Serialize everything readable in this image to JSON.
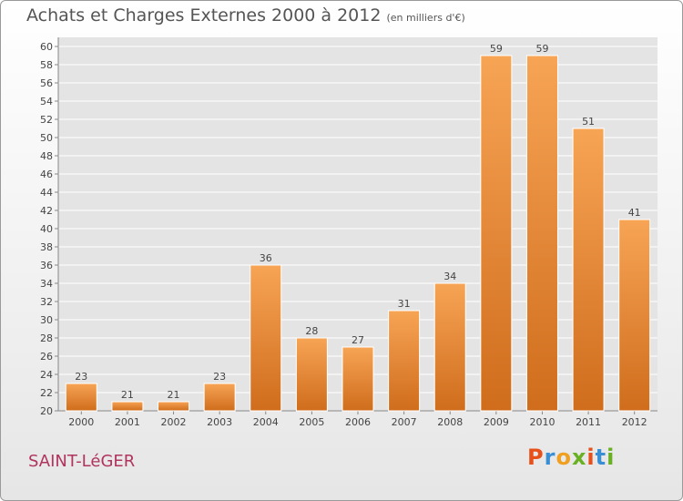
{
  "header": {
    "title": "Achats et Charges Externes 2000 à 2012",
    "subtitle": "(en milliers d'€)"
  },
  "footer": {
    "commune": "SAINT-LéGER",
    "logo_letters": [
      "P",
      "r",
      "o",
      "x",
      "i",
      "t",
      "i"
    ],
    "logo_colors": [
      "#e8501a",
      "#3a8fd4",
      "#f0a020",
      "#6ab023",
      "#e8501a",
      "#3a8fd4",
      "#6ab023"
    ]
  },
  "chart_data": {
    "type": "bar",
    "categories": [
      "2000",
      "2001",
      "2002",
      "2003",
      "2004",
      "2005",
      "2006",
      "2007",
      "2008",
      "2009",
      "2010",
      "2011",
      "2012"
    ],
    "values": [
      23,
      21,
      21,
      23,
      36,
      28,
      27,
      31,
      34,
      59,
      59,
      51,
      41
    ],
    "title": "Achats et Charges Externes 2000 à 2012",
    "subtitle": "(en milliers d'€)",
    "ylim": [
      20,
      60
    ],
    "yticks": [
      20,
      22,
      24,
      26,
      28,
      30,
      32,
      34,
      36,
      38,
      40,
      42,
      44,
      46,
      48,
      50,
      52,
      54,
      56,
      58,
      60
    ],
    "grid": true,
    "bar_color_top": "#f7a455",
    "bar_color_bottom": "#cf6d1c"
  }
}
